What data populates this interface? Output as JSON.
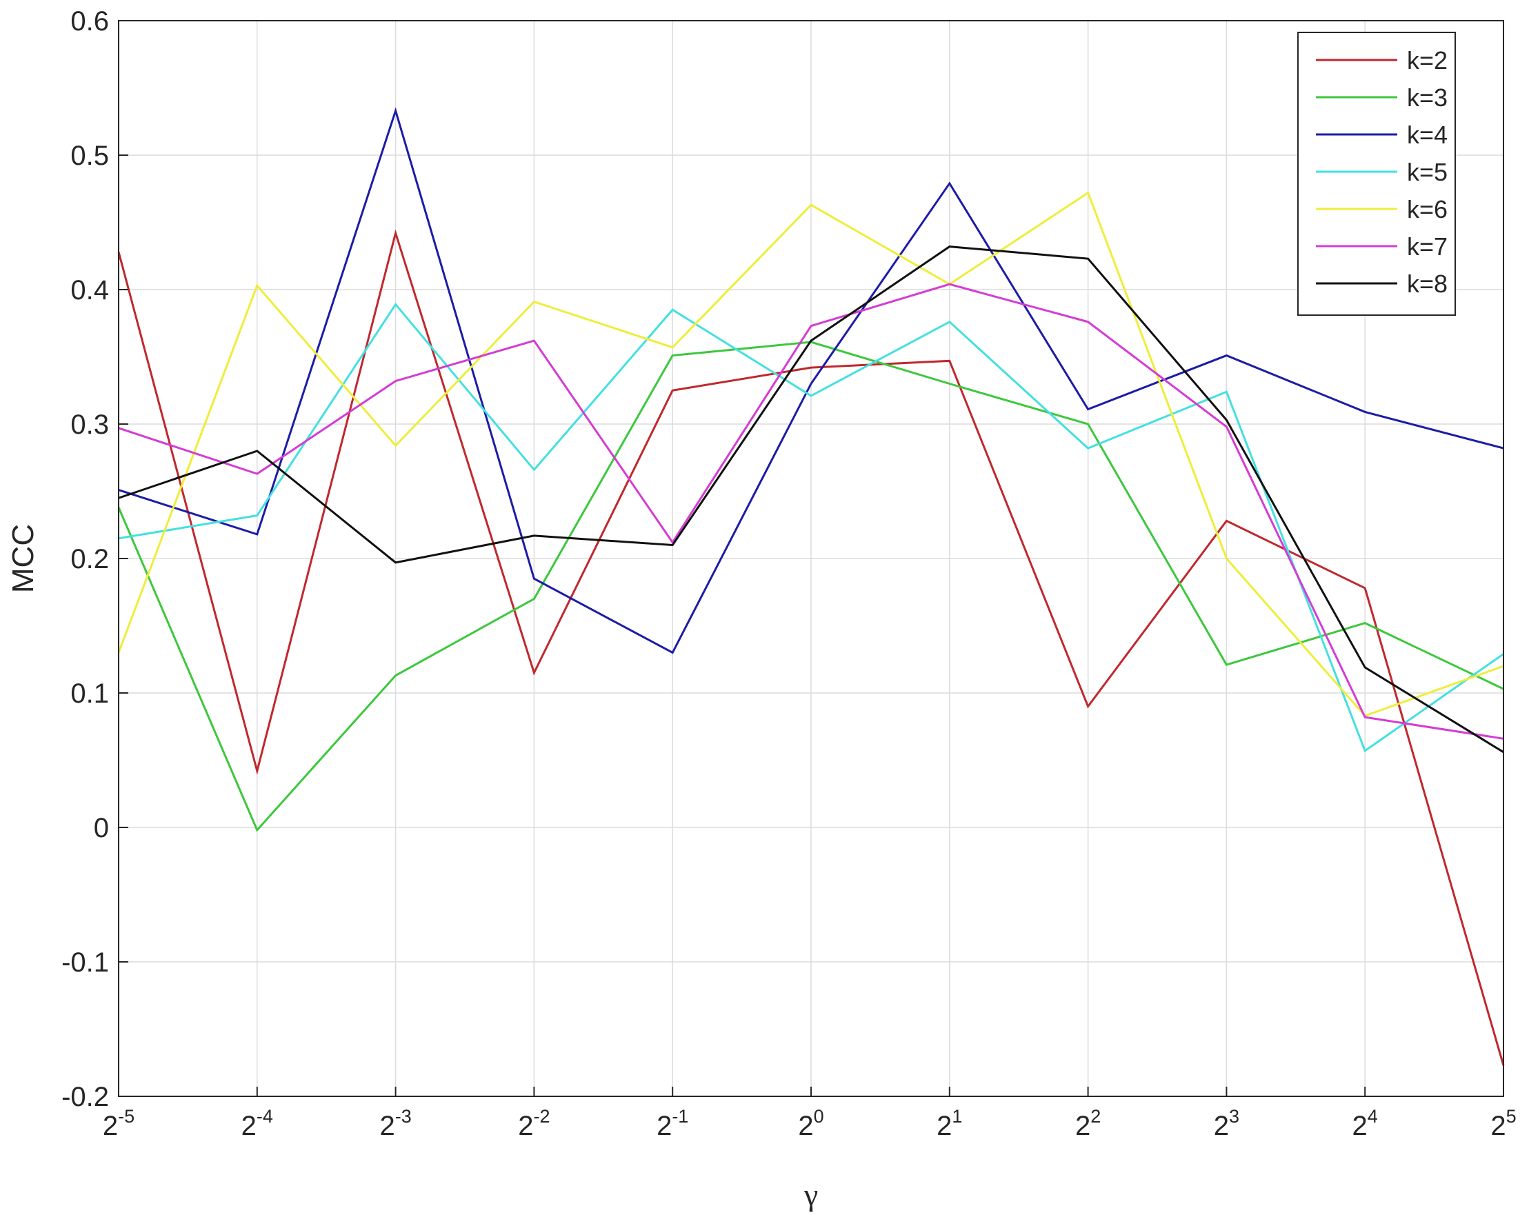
{
  "chart_data": {
    "type": "line",
    "xlabel": "γ",
    "ylabel": "MCC",
    "x": [
      -5,
      -4,
      -3,
      -2,
      -1,
      0,
      1,
      2,
      3,
      4,
      5
    ],
    "x_tick_labels": [
      {
        "base": "2",
        "exp": "-5"
      },
      {
        "base": "2",
        "exp": "-4"
      },
      {
        "base": "2",
        "exp": "-3"
      },
      {
        "base": "2",
        "exp": "-2"
      },
      {
        "base": "2",
        "exp": "-1"
      },
      {
        "base": "2",
        "exp": "0"
      },
      {
        "base": "2",
        "exp": "1"
      },
      {
        "base": "2",
        "exp": "2"
      },
      {
        "base": "2",
        "exp": "3"
      },
      {
        "base": "2",
        "exp": "4"
      },
      {
        "base": "2",
        "exp": "5"
      }
    ],
    "x_scale": "log2",
    "xlim": [
      -5,
      5
    ],
    "ylim": [
      -0.2,
      0.6
    ],
    "y_ticks": [
      -0.2,
      -0.1,
      0,
      0.1,
      0.2,
      0.3,
      0.4,
      0.5,
      0.6
    ],
    "y_tick_labels": [
      "-0.2",
      "-0.1",
      "0",
      "0.1",
      "0.2",
      "0.3",
      "0.4",
      "0.5",
      "0.6"
    ],
    "grid": true,
    "legend_position": "top-right",
    "series": [
      {
        "name": "k=2",
        "color": "#c0282d",
        "values": [
          0.428,
          0.042,
          0.442,
          0.115,
          0.325,
          0.342,
          0.347,
          0.09,
          0.228,
          0.178,
          -0.177
        ]
      },
      {
        "name": "k=3",
        "color": "#3cc83c",
        "values": [
          0.238,
          -0.002,
          0.113,
          0.17,
          0.351,
          0.361,
          0.33,
          0.3,
          0.121,
          0.152,
          0.103
        ]
      },
      {
        "name": "k=4",
        "color": "#1c1ca6",
        "values": [
          0.251,
          0.218,
          0.533,
          0.185,
          0.13,
          0.33,
          0.479,
          0.311,
          0.351,
          0.309,
          0.282
        ]
      },
      {
        "name": "k=5",
        "color": "#44e0e0",
        "values": [
          0.215,
          0.232,
          0.389,
          0.266,
          0.385,
          0.321,
          0.376,
          0.282,
          0.324,
          0.057,
          0.129
        ]
      },
      {
        "name": "k=6",
        "color": "#eeee3a",
        "values": [
          0.13,
          0.403,
          0.284,
          0.391,
          0.357,
          0.463,
          0.404,
          0.472,
          0.2,
          0.083,
          0.12
        ]
      },
      {
        "name": "k=7",
        "color": "#d43cd4",
        "values": [
          0.297,
          0.263,
          0.332,
          0.362,
          0.212,
          0.373,
          0.404,
          0.376,
          0.298,
          0.082,
          0.066
        ]
      },
      {
        "name": "k=8",
        "color": "#111111",
        "values": [
          0.245,
          0.28,
          0.197,
          0.217,
          0.21,
          0.362,
          0.432,
          0.423,
          0.303,
          0.119,
          0.056
        ]
      }
    ]
  }
}
